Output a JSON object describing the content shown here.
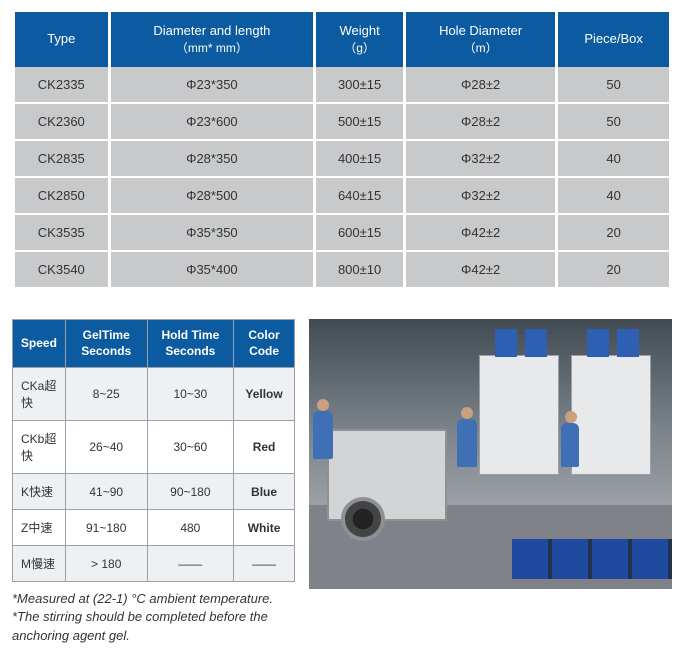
{
  "spec_table": {
    "header_bg": "#0c5ba0",
    "header_fg": "#ffffff",
    "cell_bg": "#c8c9cb",
    "cell_fg": "#333333",
    "columns": [
      {
        "label": "Type",
        "sub": ""
      },
      {
        "label": "Diameter and length",
        "sub": "（mm* mm）"
      },
      {
        "label": "Weight",
        "sub": "（g）"
      },
      {
        "label": "Hole Diameter",
        "sub": "（m）"
      },
      {
        "label": "Piece/Box",
        "sub": ""
      }
    ],
    "rows": [
      {
        "type": "CK2335",
        "dim": "Φ23*350",
        "weight": "300±15",
        "hole": "Φ28±2",
        "pcs": "50"
      },
      {
        "type": "CK2360",
        "dim": "Φ23*600",
        "weight": "500±15",
        "hole": "Φ28±2",
        "pcs": "50"
      },
      {
        "type": "CK2835",
        "dim": "Φ28*350",
        "weight": "400±15",
        "hole": "Φ32±2",
        "pcs": "40"
      },
      {
        "type": "CK2850",
        "dim": "Φ28*500",
        "weight": "640±15",
        "hole": "Φ32±2",
        "pcs": "40"
      },
      {
        "type": "CK3535",
        "dim": "Φ35*350",
        "weight": "600±15",
        "hole": "Φ42±2",
        "pcs": "20"
      },
      {
        "type": "CK3540",
        "dim": "Φ35*400",
        "weight": "800±10",
        "hole": "Φ42±2",
        "pcs": "20"
      }
    ]
  },
  "speed_table": {
    "header_bg": "#0c5ba0",
    "header_fg": "#ffffff",
    "row_alt_bg": "#edf1f4",
    "columns": [
      "Speed",
      "GelTime Seconds",
      "Hold Time Seconds",
      "Color Code"
    ],
    "rows": [
      {
        "speed": "CKa超快",
        "gel": "8~25",
        "hold": "10~30",
        "code": "Yellow",
        "code_class": "code-yellow"
      },
      {
        "speed": "CKb超快",
        "gel": "26~40",
        "hold": "30~60",
        "code": "Red",
        "code_class": "code-red"
      },
      {
        "speed": "K快速",
        "gel": "41~90",
        "hold": "90~180",
        "code": "Blue",
        "code_class": "code-blue"
      },
      {
        "speed": "Z中速",
        "gel": "91~180",
        "hold": "480",
        "code": "White",
        "code_class": "code-white"
      },
      {
        "speed": "M慢速",
        "gel": "> 180",
        "hold": "——",
        "code": "——",
        "code_class": ""
      }
    ]
  },
  "footnotes": {
    "line1": "*Measured at (22-1) °C ambient temperature.",
    "line2": "*The stirring should be completed before the anchoring agent gel."
  },
  "factory_image": {
    "description": "Industrial packaging workshop with strapping machine in foreground, packing machines, workers in blue, stacked blue product boxes",
    "palette": {
      "wall": "#5a6068",
      "floor": "#7f8389",
      "machine": "#d2d4d6",
      "boxes": "#1f4aa0",
      "hopper": "#2e5fb3"
    }
  }
}
